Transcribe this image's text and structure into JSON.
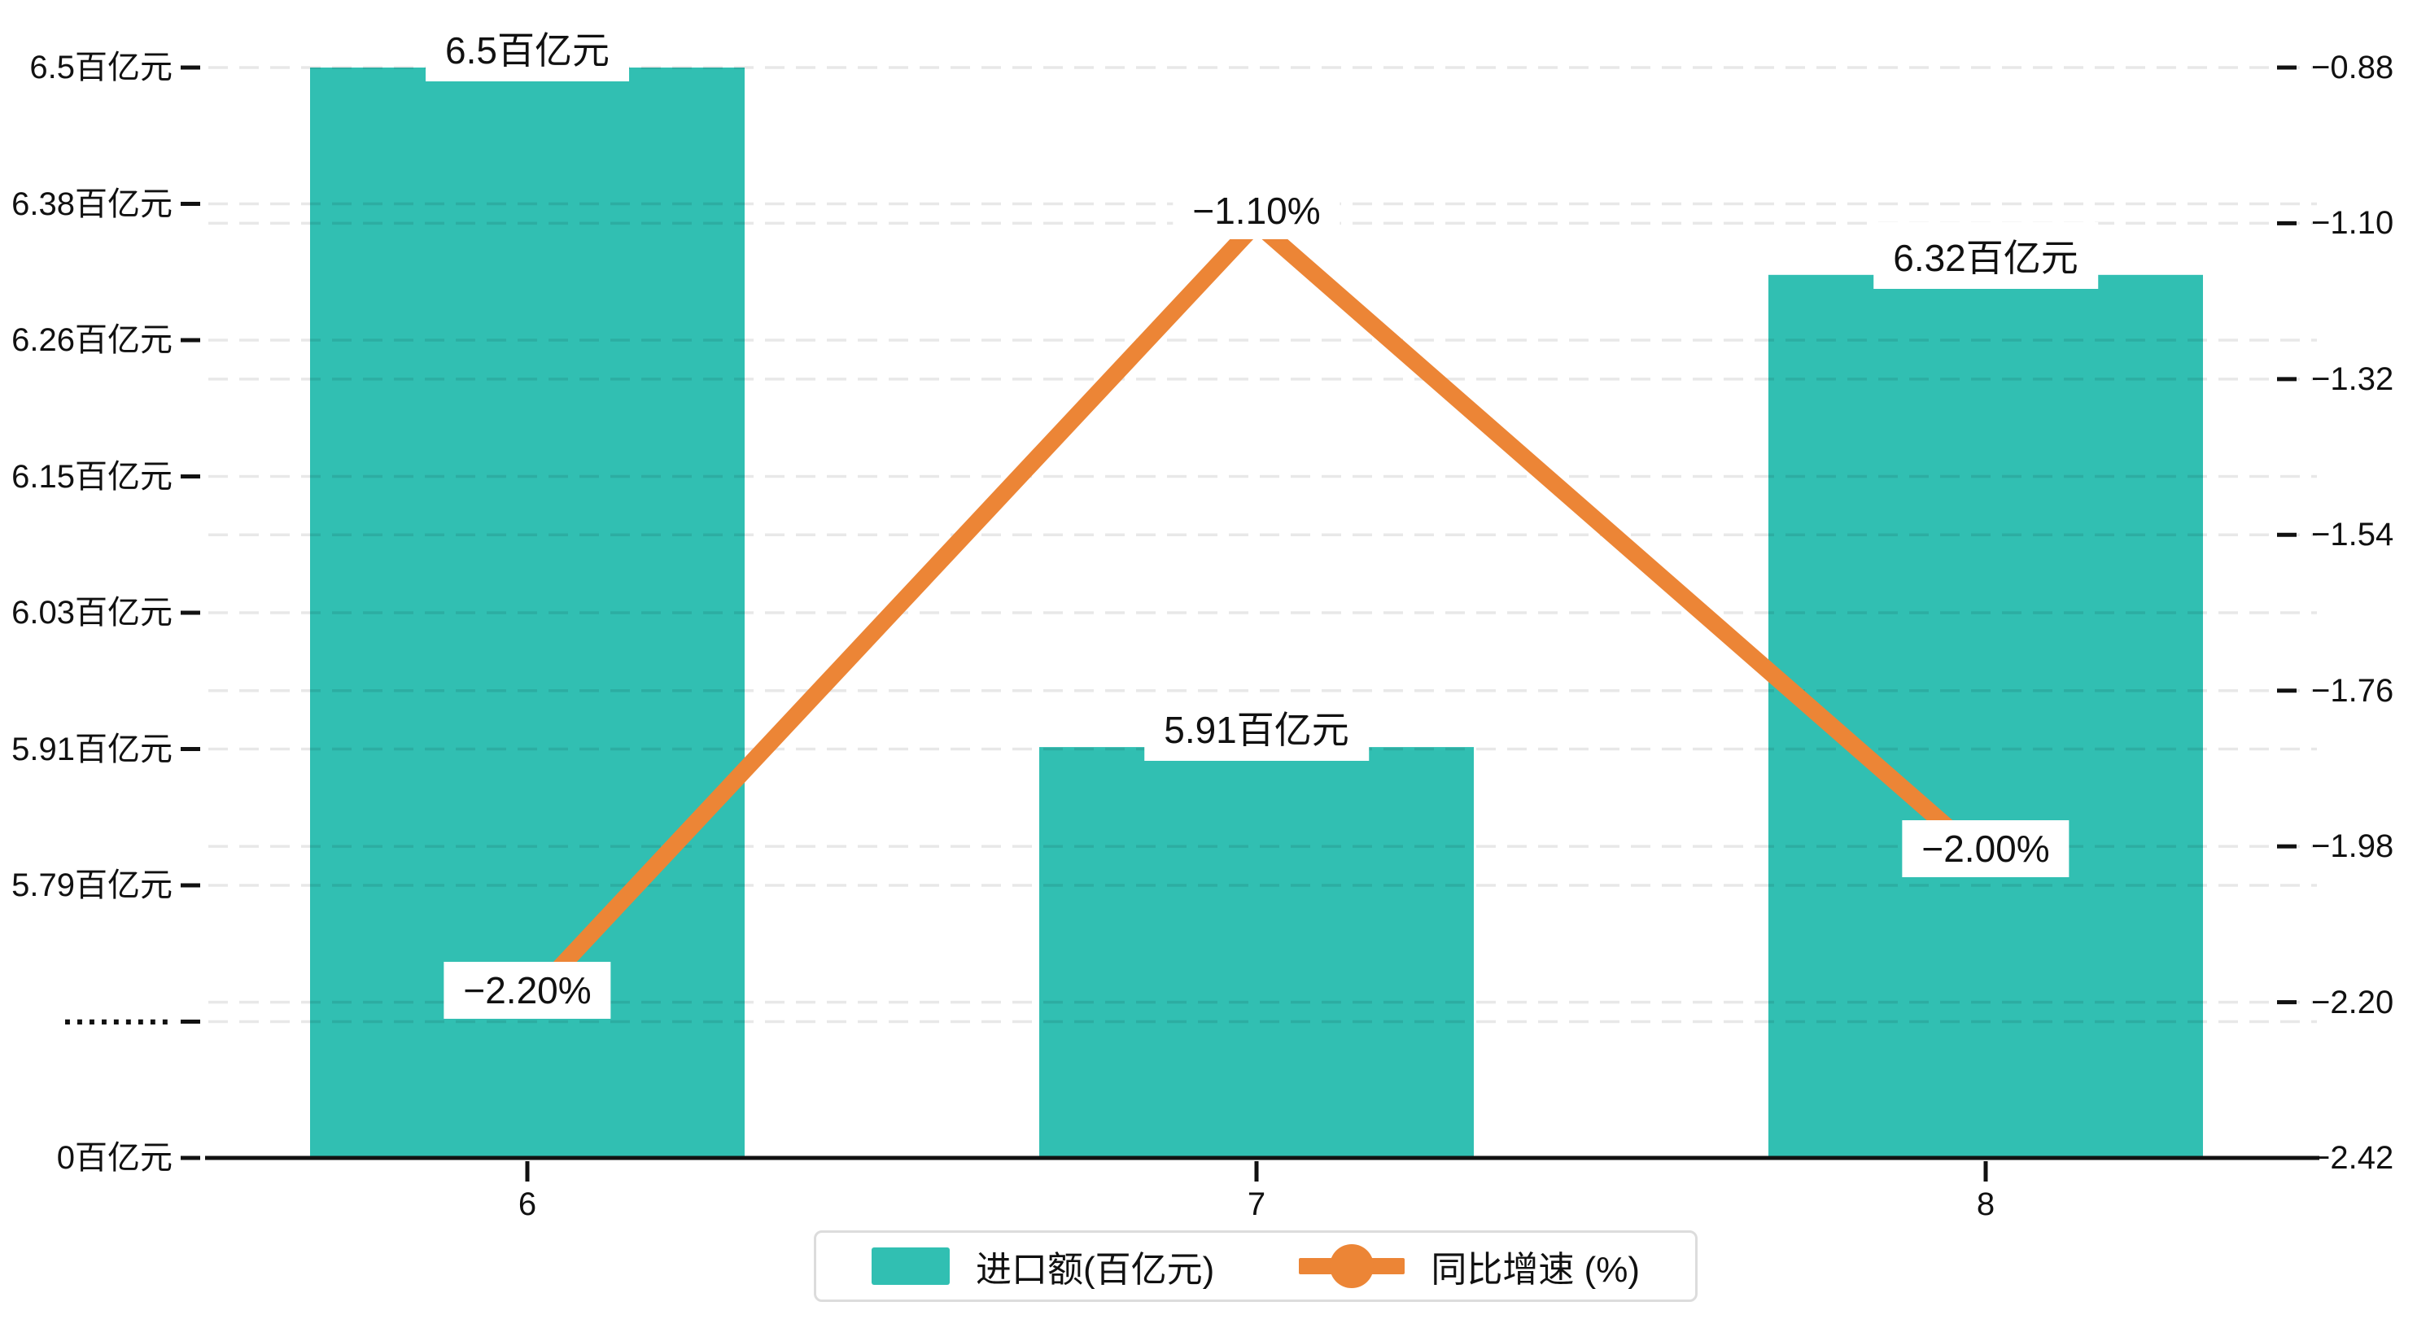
{
  "chart": {
    "background": "#ffffff",
    "bar_color": "#31BFB2",
    "line_color": "#EC8536",
    "text_color": "#111111",
    "grid_color": "rgba(0,0,0,0.09)",
    "axis_color": "#111111",
    "legend_border_color": "#dcdcdc"
  },
  "chart_data": {
    "type": "bar+line dual-axis combo",
    "categories": [
      "6",
      "7",
      "8"
    ],
    "series": [
      {
        "name": "进口额(百亿元)",
        "type": "bar",
        "axis": "left",
        "values": [
          6.5,
          5.91,
          6.32
        ],
        "point_labels": [
          "6.5百亿元",
          "5.91百亿元",
          "6.32百亿元"
        ],
        "color": "#31BFB2"
      },
      {
        "name": "同比增速 (%)",
        "type": "line",
        "axis": "right",
        "values": [
          -2.2,
          -1.1,
          -2.0
        ],
        "point_labels": [
          "−2.20%",
          "−1.10%",
          "−2.00%"
        ],
        "color": "#EC8536"
      }
    ],
    "left_axis": {
      "tick_labels": [
        "6.5百亿元",
        "6.38百亿元",
        "6.26百亿元",
        "6.15百亿元",
        "6.03百亿元",
        "5.91百亿元",
        "5.79百亿元",
        "·········",
        "0百亿元"
      ],
      "broken_axis": true,
      "visible_top_value": 6.5,
      "visible_bottom_value": 5.79,
      "visible_bottom_tick_index": 6
    },
    "right_axis": {
      "tick_labels": [
        "−0.88",
        "−1.10",
        "−1.32",
        "−1.54",
        "−1.76",
        "−1.98",
        "−2.20",
        "−2.42"
      ],
      "max": -0.88,
      "min": -2.42
    },
    "x_axis": {
      "tick_labels": [
        "6",
        "7",
        "8"
      ]
    },
    "grid": "horizontal dashed gridlines for both left and right axes",
    "legend": {
      "position": "bottom-center",
      "items": [
        {
          "label": "进口额(百亿元)",
          "marker": "rect",
          "color": "#31BFB2"
        },
        {
          "label": "同比增速 (%)",
          "marker": "line-dot",
          "color": "#EC8536"
        }
      ]
    }
  }
}
